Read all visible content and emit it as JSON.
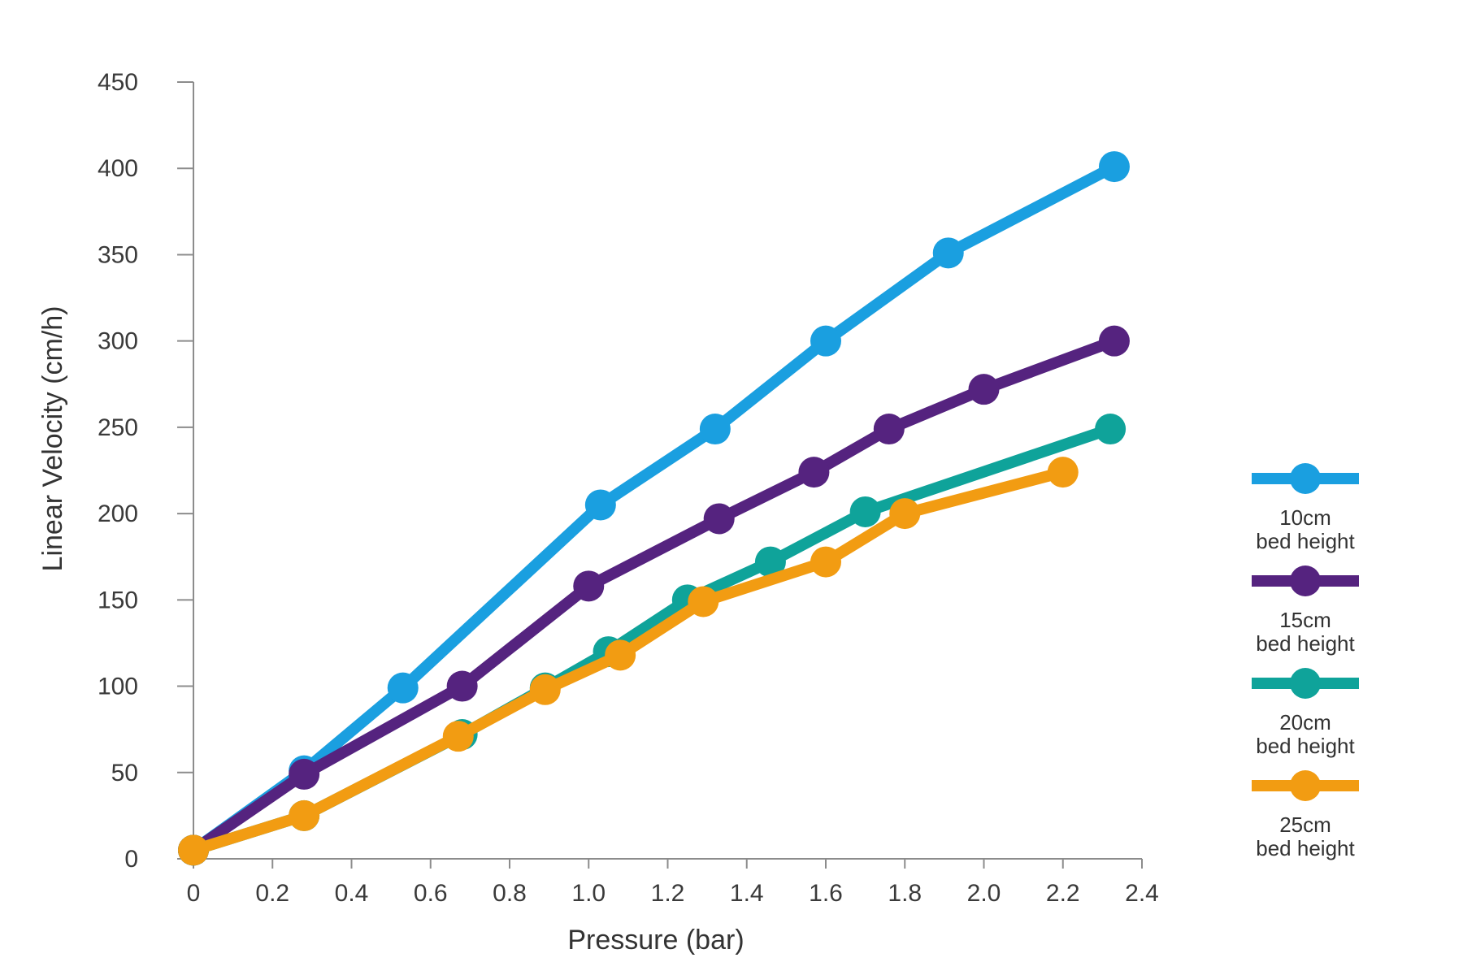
{
  "chart_data": {
    "type": "line",
    "xlabel": "Pressure (bar)",
    "ylabel": "Linear Velocity (cm/h)",
    "xlim": [
      0,
      2.4
    ],
    "ylim": [
      0,
      450
    ],
    "x_ticks": [
      "0",
      "0.2",
      "0.4",
      "0.6",
      "0.8",
      "1.0",
      "1.2",
      "1.4",
      "1.6",
      "1.8",
      "2.0",
      "2.2",
      "2.4"
    ],
    "x_tick_values": [
      0,
      0.2,
      0.4,
      0.6,
      0.8,
      1.0,
      1.2,
      1.4,
      1.6,
      1.8,
      2.0,
      2.2,
      2.4
    ],
    "y_ticks": [
      "0",
      "50",
      "100",
      "150",
      "200",
      "250",
      "300",
      "350",
      "400",
      "450"
    ],
    "y_tick_values": [
      0,
      50,
      100,
      150,
      200,
      250,
      300,
      350,
      400,
      450
    ],
    "grid": false,
    "legend_position": "right",
    "series": [
      {
        "legend_line1": "10cm",
        "legend_line2": "bed height",
        "color": "#1a9fe0",
        "points": [
          [
            0,
            5
          ],
          [
            0.28,
            51
          ],
          [
            0.53,
            99
          ],
          [
            1.03,
            205
          ],
          [
            1.32,
            249
          ],
          [
            1.6,
            300
          ],
          [
            1.91,
            351
          ],
          [
            2.33,
            401
          ]
        ]
      },
      {
        "legend_line1": "15cm",
        "legend_line2": "bed height",
        "color": "#55237f",
        "points": [
          [
            0,
            5
          ],
          [
            0.28,
            49
          ],
          [
            0.68,
            100
          ],
          [
            1.0,
            158
          ],
          [
            1.33,
            197
          ],
          [
            1.57,
            224
          ],
          [
            1.76,
            249
          ],
          [
            2.0,
            272
          ],
          [
            2.33,
            300
          ]
        ]
      },
      {
        "legend_line1": "20cm",
        "legend_line2": "bed height",
        "color": "#0fa39a",
        "points": [
          [
            0,
            5
          ],
          [
            0.28,
            25
          ],
          [
            0.68,
            72
          ],
          [
            0.89,
            99
          ],
          [
            1.05,
            120
          ],
          [
            1.25,
            150
          ],
          [
            1.46,
            172
          ],
          [
            1.7,
            201
          ],
          [
            2.32,
            249
          ]
        ]
      },
      {
        "legend_line1": "25cm",
        "legend_line2": "bed height",
        "color": "#f29c12",
        "points": [
          [
            0,
            5
          ],
          [
            0.28,
            25
          ],
          [
            0.67,
            71
          ],
          [
            0.89,
            98
          ],
          [
            1.08,
            118
          ],
          [
            1.29,
            149
          ],
          [
            1.6,
            172
          ],
          [
            1.8,
            200
          ],
          [
            2.2,
            224
          ]
        ]
      }
    ]
  }
}
